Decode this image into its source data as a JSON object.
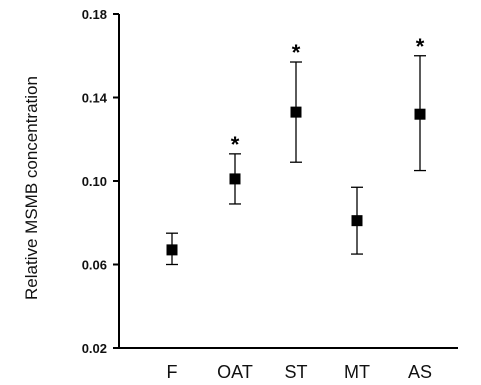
{
  "chart_data": {
    "type": "scatter",
    "ylabel": "Relative MSMB concentration",
    "xlabel": "",
    "ylim": [
      0.02,
      0.18
    ],
    "yticks": [
      "0.02",
      "0.06",
      "0.10",
      "0.14",
      "0.18"
    ],
    "categories": [
      "F",
      "OAT",
      "ST",
      "MT",
      "AS"
    ],
    "values": [
      0.067,
      0.101,
      0.133,
      0.081,
      0.132
    ],
    "error_low": [
      0.06,
      0.089,
      0.109,
      0.065,
      0.105
    ],
    "error_high": [
      0.075,
      0.113,
      0.157,
      0.097,
      0.16
    ],
    "significant": [
      false,
      true,
      true,
      false,
      true
    ],
    "significance_marker": "*",
    "grid": false,
    "marker_color": "#000000"
  }
}
